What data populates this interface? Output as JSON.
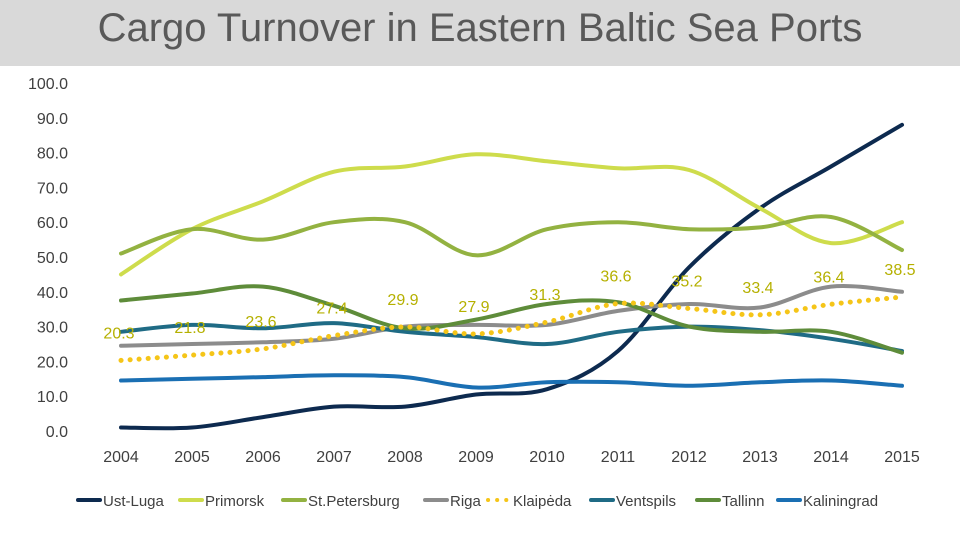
{
  "chart_data": {
    "type": "line",
    "title": "Cargo Turnover in Eastern Baltic Sea Ports",
    "xlabel": "",
    "ylabel": "",
    "ylim": [
      0,
      100
    ],
    "y_ticks": [
      "0.0",
      "10.0",
      "20.0",
      "30.0",
      "40.0",
      "50.0",
      "60.0",
      "70.0",
      "80.0",
      "90.0",
      "100.0"
    ],
    "categories": [
      "2004",
      "2005",
      "2006",
      "2007",
      "2008",
      "2009",
      "2010",
      "2011",
      "2012",
      "2013",
      "2014",
      "2015"
    ],
    "series": [
      {
        "name": "Ust-Luga",
        "color": "#0d2a4f",
        "dashed": false,
        "values": [
          1.0,
          1.0,
          4.0,
          7.0,
          7.0,
          10.5,
          12.0,
          23.0,
          47.0,
          64.0,
          76.0,
          88.0
        ]
      },
      {
        "name": "Primorsk",
        "color": "#cedc4c",
        "dashed": false,
        "values": [
          45.0,
          58.0,
          66.0,
          74.5,
          76.0,
          79.5,
          77.5,
          75.5,
          75.0,
          64.0,
          54.0,
          60.0
        ]
      },
      {
        "name": "St.Petersburg",
        "color": "#93b241",
        "dashed": false,
        "values": [
          51.0,
          58.0,
          55.0,
          60.0,
          60.0,
          50.5,
          58.0,
          60.0,
          58.0,
          58.5,
          61.5,
          52.0
        ]
      },
      {
        "name": "Riga",
        "color": "#8c8c8c",
        "dashed": false,
        "values": [
          24.5,
          25.0,
          25.5,
          26.5,
          30.0,
          30.5,
          30.5,
          34.5,
          36.5,
          35.5,
          41.5,
          40.0
        ]
      },
      {
        "name": "Klaipėda",
        "color": "#f5c518",
        "dashed": true,
        "values": [
          20.3,
          21.8,
          23.6,
          27.4,
          29.9,
          27.9,
          31.3,
          36.6,
          35.2,
          33.4,
          36.4,
          38.5
        ]
      },
      {
        "name": "Ventspils",
        "color": "#1f6b85",
        "dashed": false,
        "values": [
          28.5,
          30.5,
          29.5,
          31.0,
          28.5,
          27.0,
          25.0,
          28.5,
          30.0,
          29.0,
          26.5,
          23.0
        ]
      },
      {
        "name": "Tallinn",
        "color": "#5e8c3a",
        "dashed": false,
        "values": [
          37.5,
          39.5,
          41.5,
          36.0,
          29.5,
          32.0,
          36.5,
          37.0,
          30.0,
          28.5,
          28.5,
          22.5
        ]
      },
      {
        "name": "Kaliningrad",
        "color": "#1a6fb3",
        "dashed": false,
        "values": [
          14.5,
          15.0,
          15.5,
          16.0,
          15.5,
          12.5,
          14.0,
          14.0,
          13.0,
          14.0,
          14.5,
          13.0
        ]
      }
    ],
    "data_labels": {
      "series": "Klaipėda",
      "labels": [
        "20.3",
        "21.8",
        "23.6",
        "27.4",
        "29.9",
        "27.9",
        "31.3",
        "36.6",
        "35.2",
        "33.4",
        "36.4",
        "38.5"
      ]
    },
    "legend": {
      "placement": "bottom"
    },
    "grid": false
  }
}
